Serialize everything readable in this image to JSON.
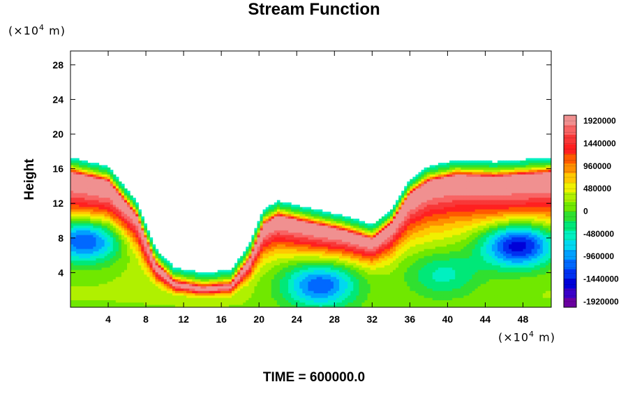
{
  "chart_data": {
    "type": "heatmap",
    "title": "Stream Function",
    "ylabel": "Height",
    "x_unit_prefix": "(×10",
    "x_unit_exp": "4",
    "x_unit_suffix": " m)",
    "y_unit_prefix": "(×10",
    "y_unit_exp": "4",
    "y_unit_suffix": " m)",
    "xlim": [
      0,
      51
    ],
    "ylim": [
      0,
      29.6
    ],
    "x_ticks": [
      4,
      8,
      12,
      16,
      20,
      24,
      28,
      32,
      36,
      40,
      44,
      48
    ],
    "y_ticks": [
      4,
      8,
      12,
      16,
      20,
      24,
      28
    ],
    "colorbar": {
      "range": [
        -2040000,
        2040000
      ],
      "labels": [
        "1920000",
        "1440000",
        "960000",
        "480000",
        "0",
        "-480000",
        "-960000",
        "-1440000",
        "-1920000"
      ],
      "label_values": [
        1920000,
        1440000,
        960000,
        480000,
        0,
        -480000,
        -960000,
        -1440000,
        -1920000
      ]
    },
    "footer": "TIME = 600000.0",
    "max_ridge_height_profile": [
      [
        0,
        15.5
      ],
      [
        4,
        14.5
      ],
      [
        7,
        10.5
      ],
      [
        9,
        5
      ],
      [
        11,
        2.8
      ],
      [
        14,
        2.2
      ],
      [
        17,
        2.5
      ],
      [
        19,
        5.5
      ],
      [
        20.5,
        9.5
      ],
      [
        22,
        10.5
      ],
      [
        26,
        9.5
      ],
      [
        29,
        8.8
      ],
      [
        32,
        7.8
      ],
      [
        34,
        9.5
      ],
      [
        36,
        13
      ],
      [
        38,
        14.5
      ],
      [
        41,
        15.2
      ],
      [
        45,
        15
      ],
      [
        51,
        15.5
      ]
    ],
    "minima": [
      {
        "x": 1.5,
        "y": 7.8,
        "value": -1680000
      },
      {
        "x": 47.5,
        "y": 7.2,
        "value": -1920000
      },
      {
        "x": 26.5,
        "y": 2.6,
        "value": -1440000
      },
      {
        "x": 39.5,
        "y": 3.8,
        "value": -720000
      }
    ]
  }
}
